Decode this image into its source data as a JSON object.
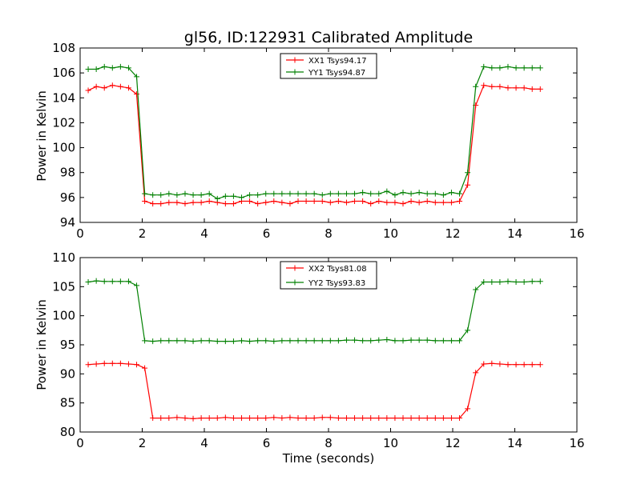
{
  "chart_data": [
    {
      "type": "line",
      "title": "gl56, ID:122931 Calibrated Amplitude",
      "xlabel": "",
      "ylabel": "Power in Kelvin",
      "xlim": [
        0,
        16
      ],
      "ylim": [
        94,
        108
      ],
      "xticks": [
        "0",
        "2",
        "4",
        "6",
        "8",
        "10",
        "12",
        "14",
        "16"
      ],
      "yticks": [
        "94",
        "96",
        "98",
        "100",
        "102",
        "104",
        "106",
        "108"
      ],
      "legend_position": "top-center",
      "x": [
        0.26,
        0.52,
        0.78,
        1.04,
        1.3,
        1.56,
        1.82,
        2.08,
        2.34,
        2.6,
        2.86,
        3.12,
        3.38,
        3.64,
        3.9,
        4.16,
        4.42,
        4.68,
        4.94,
        5.2,
        5.46,
        5.72,
        5.98,
        6.24,
        6.5,
        6.76,
        7.02,
        7.28,
        7.54,
        7.8,
        8.06,
        8.32,
        8.58,
        8.84,
        9.1,
        9.36,
        9.62,
        9.88,
        10.14,
        10.4,
        10.66,
        10.92,
        11.18,
        11.44,
        11.7,
        11.96,
        12.22,
        12.48,
        12.74,
        13.0,
        13.26,
        13.52,
        13.78,
        14.04,
        14.3,
        14.56,
        14.82
      ],
      "series": [
        {
          "name": "XX1 Tsys94.17",
          "color": "#ff0000",
          "values": [
            104.6,
            104.9,
            104.8,
            105.0,
            104.9,
            104.8,
            104.3,
            95.7,
            95.5,
            95.5,
            95.6,
            95.6,
            95.5,
            95.6,
            95.6,
            95.7,
            95.6,
            95.5,
            95.5,
            95.7,
            95.7,
            95.5,
            95.6,
            95.7,
            95.6,
            95.5,
            95.7,
            95.7,
            95.7,
            95.7,
            95.6,
            95.7,
            95.6,
            95.7,
            95.7,
            95.5,
            95.7,
            95.6,
            95.6,
            95.5,
            95.7,
            95.6,
            95.7,
            95.6,
            95.6,
            95.6,
            95.7,
            97.0,
            103.4,
            105.0,
            104.9,
            104.9,
            104.8,
            104.8,
            104.8,
            104.7,
            104.7
          ]
        },
        {
          "name": "YY1 Tsys94.87",
          "color": "#008000",
          "values": [
            106.3,
            106.3,
            106.5,
            106.4,
            106.5,
            106.4,
            105.7,
            96.3,
            96.2,
            96.2,
            96.3,
            96.2,
            96.3,
            96.2,
            96.2,
            96.3,
            95.9,
            96.1,
            96.1,
            96.0,
            96.2,
            96.2,
            96.3,
            96.3,
            96.3,
            96.3,
            96.3,
            96.3,
            96.3,
            96.2,
            96.3,
            96.3,
            96.3,
            96.3,
            96.4,
            96.3,
            96.3,
            96.5,
            96.2,
            96.4,
            96.3,
            96.4,
            96.3,
            96.3,
            96.2,
            96.4,
            96.3,
            98.0,
            104.9,
            106.5,
            106.4,
            106.4,
            106.5,
            106.4,
            106.4,
            106.4,
            106.4
          ]
        }
      ]
    },
    {
      "type": "line",
      "title": "",
      "xlabel": "Time (seconds)",
      "ylabel": "Power in Kelvin",
      "xlim": [
        0,
        16
      ],
      "ylim": [
        80,
        110
      ],
      "xticks": [
        "0",
        "2",
        "4",
        "6",
        "8",
        "10",
        "12",
        "14",
        "16"
      ],
      "yticks": [
        "80",
        "85",
        "90",
        "95",
        "100",
        "105",
        "110"
      ],
      "legend_position": "top-center",
      "x": [
        0.26,
        0.52,
        0.78,
        1.04,
        1.3,
        1.56,
        1.82,
        2.08,
        2.34,
        2.6,
        2.86,
        3.12,
        3.38,
        3.64,
        3.9,
        4.16,
        4.42,
        4.68,
        4.94,
        5.2,
        5.46,
        5.72,
        5.98,
        6.24,
        6.5,
        6.76,
        7.02,
        7.28,
        7.54,
        7.8,
        8.06,
        8.32,
        8.58,
        8.84,
        9.1,
        9.36,
        9.62,
        9.88,
        10.14,
        10.4,
        10.66,
        10.92,
        11.18,
        11.44,
        11.7,
        11.96,
        12.22,
        12.48,
        12.74,
        13.0,
        13.26,
        13.52,
        13.78,
        14.04,
        14.3,
        14.56,
        14.82
      ],
      "series": [
        {
          "name": "XX2 Tsys81.08",
          "color": "#ff0000",
          "values": [
            91.6,
            91.7,
            91.8,
            91.8,
            91.8,
            91.7,
            91.6,
            91.0,
            82.4,
            82.4,
            82.4,
            82.5,
            82.4,
            82.3,
            82.4,
            82.4,
            82.4,
            82.5,
            82.4,
            82.4,
            82.4,
            82.4,
            82.4,
            82.5,
            82.4,
            82.5,
            82.4,
            82.4,
            82.4,
            82.5,
            82.5,
            82.4,
            82.4,
            82.4,
            82.4,
            82.4,
            82.4,
            82.4,
            82.4,
            82.4,
            82.4,
            82.4,
            82.4,
            82.4,
            82.4,
            82.4,
            82.4,
            84.0,
            90.2,
            91.7,
            91.8,
            91.7,
            91.6,
            91.6,
            91.6,
            91.6,
            91.6
          ]
        },
        {
          "name": "YY2 Tsys93.83",
          "color": "#008000",
          "values": [
            105.8,
            106.0,
            105.9,
            105.9,
            105.9,
            105.9,
            105.2,
            95.7,
            95.6,
            95.7,
            95.7,
            95.7,
            95.7,
            95.6,
            95.7,
            95.7,
            95.6,
            95.6,
            95.6,
            95.7,
            95.6,
            95.7,
            95.7,
            95.6,
            95.7,
            95.7,
            95.7,
            95.7,
            95.7,
            95.7,
            95.7,
            95.7,
            95.8,
            95.8,
            95.7,
            95.7,
            95.8,
            95.9,
            95.7,
            95.7,
            95.8,
            95.8,
            95.8,
            95.7,
            95.7,
            95.7,
            95.7,
            97.5,
            104.5,
            105.8,
            105.8,
            105.8,
            105.9,
            105.8,
            105.8,
            105.9,
            105.9
          ]
        }
      ]
    }
  ]
}
